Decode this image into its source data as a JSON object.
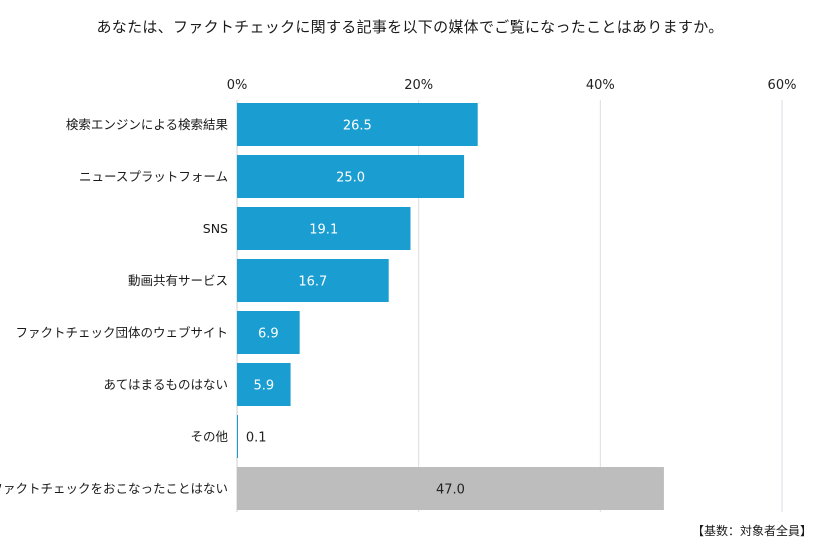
{
  "chart_data": {
    "type": "bar",
    "orientation": "horizontal",
    "title": "あなたは、ファクトチェックに関する記事を以下の媒体でご覧になったことはありますか。",
    "note": "【基数：対象者全員】",
    "xlim": [
      0,
      60
    ],
    "ticks": [
      0,
      20,
      40,
      60
    ],
    "tick_labels": [
      "0%",
      "20%",
      "40%",
      "60%"
    ],
    "grid": true,
    "categories": [
      "検索エンジンによる検索結果",
      "ニュースプラットフォーム",
      "SNS",
      "動画共有サービス",
      "ファクトチェック団体のウェブサイト",
      "あてはまるものはない",
      "その他",
      "ファクトチェックをおこなったことはない"
    ],
    "values": [
      26.5,
      25.0,
      19.1,
      16.7,
      6.9,
      5.9,
      0.1,
      47.0
    ],
    "value_labels": [
      "26.5",
      "25.0",
      "19.1",
      "16.7",
      "6.9",
      "5.9",
      "0.1",
      "47.0"
    ],
    "colors": [
      "#1a9ed1",
      "#1a9ed1",
      "#1a9ed1",
      "#1a9ed1",
      "#1a9ed1",
      "#1a9ed1",
      "#1a9ed1",
      "#bdbdbd"
    ],
    "value_label_colors": [
      "#ffffff",
      "#ffffff",
      "#ffffff",
      "#ffffff",
      "#ffffff",
      "#ffffff",
      "#222222",
      "#222222"
    ]
  }
}
